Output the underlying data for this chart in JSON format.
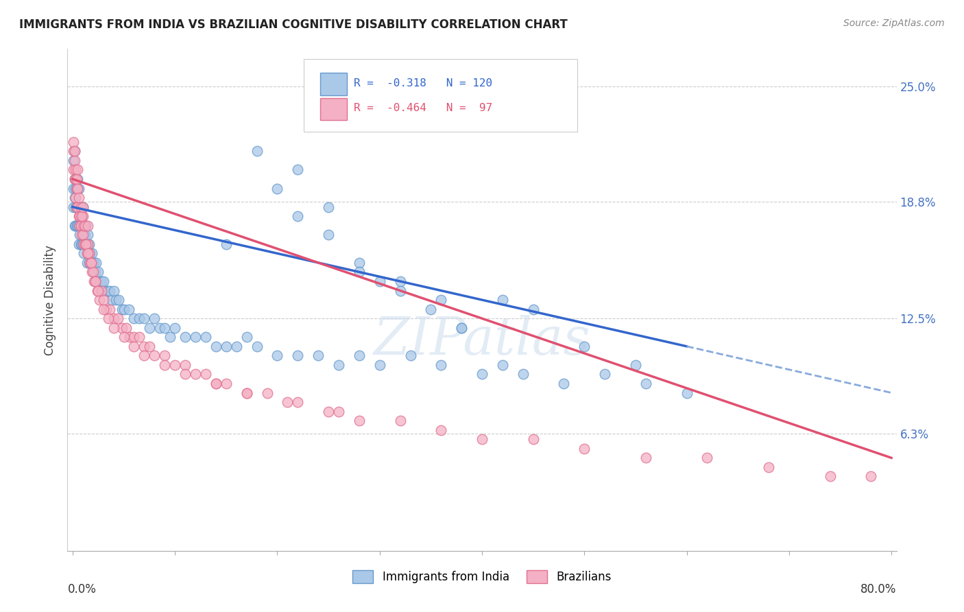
{
  "title": "IMMIGRANTS FROM INDIA VS BRAZILIAN COGNITIVE DISABILITY CORRELATION CHART",
  "source": "Source: ZipAtlas.com",
  "ylabel": "Cognitive Disability",
  "ytick_labels": [
    "25.0%",
    "18.8%",
    "12.5%",
    "6.3%"
  ],
  "ytick_values": [
    0.25,
    0.188,
    0.125,
    0.063
  ],
  "xlim": [
    0.0,
    0.8
  ],
  "ylim": [
    0.0,
    0.27
  ],
  "color_india": "#aac8e8",
  "color_brazil": "#f4b0c4",
  "edge_india": "#6699cc",
  "edge_brazil": "#e07090",
  "regression_india_solid_color": "#3366cc",
  "regression_brazil_solid_color": "#e05070",
  "regression_india_dash_color": "#88aadd",
  "watermark": "ZIPatlas",
  "legend_india_text": "R =  -0.318   N = 120",
  "legend_brazil_text": "R =  -0.464   N =  97",
  "india_x": [
    0.001,
    0.001,
    0.001,
    0.002,
    0.002,
    0.002,
    0.002,
    0.003,
    0.003,
    0.003,
    0.003,
    0.004,
    0.004,
    0.004,
    0.005,
    0.005,
    0.005,
    0.005,
    0.006,
    0.006,
    0.006,
    0.006,
    0.007,
    0.007,
    0.007,
    0.008,
    0.008,
    0.008,
    0.009,
    0.009,
    0.009,
    0.01,
    0.01,
    0.01,
    0.011,
    0.011,
    0.011,
    0.012,
    0.012,
    0.013,
    0.013,
    0.014,
    0.014,
    0.015,
    0.015,
    0.016,
    0.016,
    0.017,
    0.018,
    0.019,
    0.02,
    0.021,
    0.022,
    0.023,
    0.025,
    0.026,
    0.028,
    0.03,
    0.032,
    0.034,
    0.036,
    0.038,
    0.04,
    0.042,
    0.045,
    0.048,
    0.05,
    0.055,
    0.06,
    0.065,
    0.07,
    0.075,
    0.08,
    0.085,
    0.09,
    0.095,
    0.1,
    0.11,
    0.12,
    0.13,
    0.14,
    0.15,
    0.16,
    0.17,
    0.18,
    0.2,
    0.22,
    0.24,
    0.26,
    0.28,
    0.3,
    0.33,
    0.36,
    0.4,
    0.44,
    0.48,
    0.52,
    0.56,
    0.6,
    0.28,
    0.32,
    0.36,
    0.2,
    0.22,
    0.25,
    0.18,
    0.15,
    0.42,
    0.38,
    0.5,
    0.45,
    0.55,
    0.3,
    0.35,
    0.25,
    0.22,
    0.28,
    0.32,
    0.38,
    0.42
  ],
  "india_y": [
    0.195,
    0.21,
    0.185,
    0.2,
    0.19,
    0.175,
    0.215,
    0.195,
    0.185,
    0.175,
    0.2,
    0.185,
    0.175,
    0.195,
    0.185,
    0.195,
    0.175,
    0.2,
    0.185,
    0.175,
    0.195,
    0.165,
    0.18,
    0.17,
    0.185,
    0.175,
    0.165,
    0.185,
    0.175,
    0.165,
    0.18,
    0.175,
    0.165,
    0.185,
    0.17,
    0.16,
    0.175,
    0.17,
    0.165,
    0.165,
    0.175,
    0.165,
    0.155,
    0.16,
    0.17,
    0.165,
    0.155,
    0.16,
    0.155,
    0.16,
    0.155,
    0.155,
    0.15,
    0.155,
    0.15,
    0.145,
    0.145,
    0.145,
    0.14,
    0.14,
    0.14,
    0.135,
    0.14,
    0.135,
    0.135,
    0.13,
    0.13,
    0.13,
    0.125,
    0.125,
    0.125,
    0.12,
    0.125,
    0.12,
    0.12,
    0.115,
    0.12,
    0.115,
    0.115,
    0.115,
    0.11,
    0.11,
    0.11,
    0.115,
    0.11,
    0.105,
    0.105,
    0.105,
    0.1,
    0.105,
    0.1,
    0.105,
    0.1,
    0.095,
    0.095,
    0.09,
    0.095,
    0.09,
    0.085,
    0.155,
    0.145,
    0.135,
    0.195,
    0.205,
    0.185,
    0.215,
    0.165,
    0.135,
    0.12,
    0.11,
    0.13,
    0.1,
    0.145,
    0.13,
    0.17,
    0.18,
    0.15,
    0.14,
    0.12,
    0.1
  ],
  "brazil_x": [
    0.001,
    0.001,
    0.001,
    0.002,
    0.002,
    0.002,
    0.003,
    0.003,
    0.003,
    0.004,
    0.004,
    0.004,
    0.005,
    0.005,
    0.005,
    0.006,
    0.006,
    0.007,
    0.007,
    0.008,
    0.008,
    0.009,
    0.009,
    0.01,
    0.01,
    0.011,
    0.011,
    0.012,
    0.012,
    0.013,
    0.014,
    0.015,
    0.015,
    0.016,
    0.017,
    0.018,
    0.019,
    0.02,
    0.021,
    0.022,
    0.024,
    0.026,
    0.028,
    0.03,
    0.033,
    0.036,
    0.04,
    0.044,
    0.048,
    0.052,
    0.056,
    0.06,
    0.065,
    0.07,
    0.075,
    0.08,
    0.09,
    0.1,
    0.11,
    0.12,
    0.13,
    0.14,
    0.15,
    0.17,
    0.19,
    0.22,
    0.25,
    0.28,
    0.32,
    0.36,
    0.4,
    0.45,
    0.5,
    0.56,
    0.62,
    0.68,
    0.74,
    0.78,
    0.009,
    0.01,
    0.013,
    0.015,
    0.018,
    0.022,
    0.025,
    0.03,
    0.035,
    0.04,
    0.05,
    0.06,
    0.07,
    0.09,
    0.11,
    0.14,
    0.17,
    0.21,
    0.26
  ],
  "brazil_y": [
    0.215,
    0.205,
    0.22,
    0.21,
    0.2,
    0.215,
    0.2,
    0.19,
    0.205,
    0.195,
    0.185,
    0.2,
    0.185,
    0.195,
    0.205,
    0.18,
    0.19,
    0.18,
    0.175,
    0.175,
    0.185,
    0.17,
    0.18,
    0.17,
    0.18,
    0.165,
    0.175,
    0.165,
    0.175,
    0.165,
    0.16,
    0.165,
    0.175,
    0.16,
    0.155,
    0.155,
    0.15,
    0.15,
    0.145,
    0.145,
    0.14,
    0.135,
    0.14,
    0.135,
    0.13,
    0.13,
    0.125,
    0.125,
    0.12,
    0.12,
    0.115,
    0.115,
    0.115,
    0.11,
    0.11,
    0.105,
    0.105,
    0.1,
    0.1,
    0.095,
    0.095,
    0.09,
    0.09,
    0.085,
    0.085,
    0.08,
    0.075,
    0.07,
    0.07,
    0.065,
    0.06,
    0.06,
    0.055,
    0.05,
    0.05,
    0.045,
    0.04,
    0.04,
    0.18,
    0.185,
    0.165,
    0.16,
    0.155,
    0.145,
    0.14,
    0.13,
    0.125,
    0.12,
    0.115,
    0.11,
    0.105,
    0.1,
    0.095,
    0.09,
    0.085,
    0.08,
    0.075
  ]
}
